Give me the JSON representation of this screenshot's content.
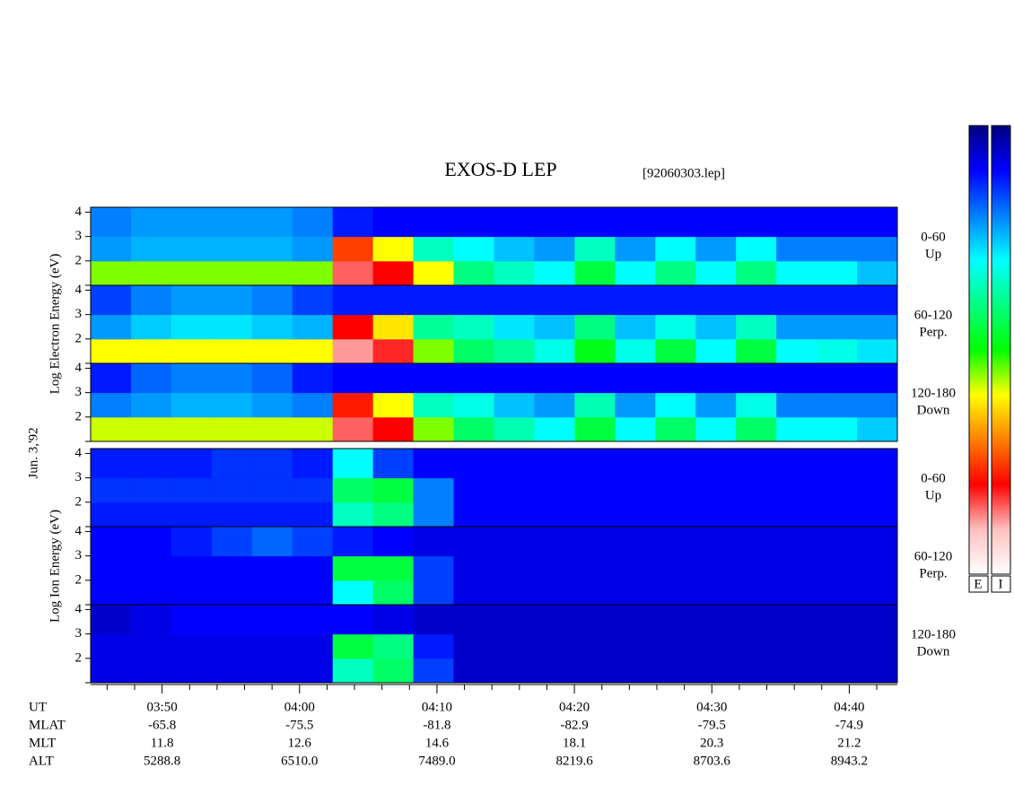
{
  "chart_data": {
    "type": "spectrogram",
    "title": "EXOS-D LEP",
    "file": "[92060303.lep]",
    "date_label": "Jun. 3,'92",
    "group_labels": [
      "Log Electron Energy (eV)",
      "Log Ion Energy (eV)"
    ],
    "colorbar_labels": [
      "E",
      "I"
    ],
    "colorscale": [
      "#000080",
      "#0000ff",
      "#0080ff",
      "#00ffff",
      "#00ff80",
      "#00ff00",
      "#ffff00",
      "#ff8000",
      "#ff0000",
      "#ffc0c0",
      "#ffffff"
    ],
    "xlim": [
      224.8,
      283.5
    ],
    "xticks": [
      {
        "value": 230,
        "label": "03:50"
      },
      {
        "value": 240,
        "label": "04:00"
      },
      {
        "value": 250,
        "label": "04:10"
      },
      {
        "value": 260,
        "label": "04:20"
      },
      {
        "value": 270,
        "label": "04:30"
      },
      {
        "value": 280,
        "label": "04:40"
      }
    ],
    "xminorticks": [
      226,
      228,
      232,
      234,
      236,
      238,
      242,
      244,
      246,
      248,
      252,
      254,
      256,
      258,
      262,
      264,
      266,
      268,
      272,
      274,
      276,
      278,
      282
    ],
    "xlabel": "UT",
    "ephemeris": [
      {
        "name": "MLAT",
        "values": [
          "-65.8",
          "-75.5",
          "-81.8",
          "-82.9",
          "-79.5",
          "-74.9"
        ]
      },
      {
        "name": "MLT",
        "values": [
          "11.8",
          "12.6",
          "14.6",
          "18.1",
          "20.3",
          "21.2"
        ]
      },
      {
        "name": "ALT",
        "values": [
          "5288.8",
          "6510.0",
          "7489.0",
          "8219.6",
          "8703.6",
          "8943.2"
        ]
      }
    ],
    "ylim": [
      1,
      4.2
    ],
    "yticks": [
      1,
      2,
      3,
      4
    ],
    "ybins": [
      1,
      2,
      3,
      4.2
    ],
    "panels": [
      {
        "group": 0,
        "label": [
          "0-60",
          "Up"
        ],
        "values": [
          [
            0.55,
            0.55,
            0.55,
            0.55,
            0.55,
            0.55,
            0.85,
            0.8,
            0.6,
            0.4,
            0.35,
            0.3,
            0.45,
            0.3,
            0.4,
            0.3,
            0.4,
            0.3,
            0.3,
            0.25
          ],
          [
            0.22,
            0.24,
            0.24,
            0.24,
            0.24,
            0.22,
            0.75,
            0.6,
            0.35,
            0.3,
            0.25,
            0.22,
            0.35,
            0.22,
            0.3,
            0.22,
            0.3,
            0.2,
            0.2,
            0.2
          ],
          [
            0.2,
            0.22,
            0.22,
            0.22,
            0.22,
            0.2,
            0.12,
            0.1,
            0.1,
            0.1,
            0.1,
            0.1,
            0.1,
            0.1,
            0.1,
            0.1,
            0.1,
            0.1,
            0.1,
            0.1
          ]
        ]
      },
      {
        "group": 0,
        "label": [
          "60-120",
          "Perp."
        ],
        "values": [
          [
            0.6,
            0.6,
            0.6,
            0.6,
            0.6,
            0.6,
            0.88,
            0.82,
            0.55,
            0.42,
            0.38,
            0.32,
            0.48,
            0.32,
            0.45,
            0.3,
            0.45,
            0.3,
            0.32,
            0.28
          ],
          [
            0.22,
            0.26,
            0.28,
            0.28,
            0.26,
            0.24,
            0.8,
            0.62,
            0.38,
            0.35,
            0.28,
            0.25,
            0.4,
            0.25,
            0.32,
            0.25,
            0.35,
            0.22,
            0.22,
            0.22
          ],
          [
            0.15,
            0.2,
            0.22,
            0.22,
            0.2,
            0.15,
            0.12,
            0.12,
            0.12,
            0.12,
            0.12,
            0.12,
            0.12,
            0.12,
            0.12,
            0.12,
            0.12,
            0.12,
            0.12,
            0.12
          ]
        ]
      },
      {
        "group": 0,
        "label": [
          "120-180",
          "Down"
        ],
        "values": [
          [
            0.58,
            0.58,
            0.58,
            0.58,
            0.58,
            0.58,
            0.85,
            0.8,
            0.55,
            0.42,
            0.36,
            0.3,
            0.45,
            0.3,
            0.42,
            0.3,
            0.42,
            0.3,
            0.3,
            0.26
          ],
          [
            0.2,
            0.22,
            0.24,
            0.24,
            0.22,
            0.2,
            0.78,
            0.6,
            0.35,
            0.32,
            0.25,
            0.22,
            0.36,
            0.22,
            0.3,
            0.22,
            0.32,
            0.2,
            0.2,
            0.2
          ],
          [
            0.12,
            0.18,
            0.2,
            0.2,
            0.18,
            0.12,
            0.1,
            0.1,
            0.1,
            0.1,
            0.1,
            0.1,
            0.1,
            0.1,
            0.1,
            0.1,
            0.1,
            0.1,
            0.1,
            0.1
          ]
        ]
      },
      {
        "group": 1,
        "label": [
          "0-60",
          "Up"
        ],
        "values": [
          [
            0.12,
            0.12,
            0.12,
            0.12,
            0.12,
            0.12,
            0.35,
            0.4,
            0.2,
            0.1,
            0.1,
            0.1,
            0.1,
            0.1,
            0.1,
            0.1,
            0.1,
            0.1,
            0.1,
            0.1
          ],
          [
            0.14,
            0.14,
            0.14,
            0.14,
            0.14,
            0.14,
            0.42,
            0.45,
            0.2,
            0.1,
            0.1,
            0.1,
            0.1,
            0.1,
            0.1,
            0.1,
            0.1,
            0.1,
            0.1,
            0.1
          ],
          [
            0.12,
            0.12,
            0.12,
            0.14,
            0.14,
            0.12,
            0.3,
            0.15,
            0.1,
            0.1,
            0.1,
            0.1,
            0.1,
            0.1,
            0.1,
            0.1,
            0.1,
            0.1,
            0.1,
            0.1
          ]
        ]
      },
      {
        "group": 1,
        "label": [
          "60-120",
          "Perp."
        ],
        "values": [
          [
            0.1,
            0.1,
            0.1,
            0.1,
            0.1,
            0.1,
            0.3,
            0.42,
            0.15,
            0.08,
            0.08,
            0.08,
            0.08,
            0.08,
            0.08,
            0.08,
            0.08,
            0.08,
            0.08,
            0.08
          ],
          [
            0.1,
            0.1,
            0.1,
            0.1,
            0.1,
            0.1,
            0.45,
            0.45,
            0.15,
            0.08,
            0.08,
            0.08,
            0.08,
            0.08,
            0.08,
            0.08,
            0.08,
            0.08,
            0.08,
            0.08
          ],
          [
            0.1,
            0.1,
            0.12,
            0.15,
            0.18,
            0.15,
            0.12,
            0.1,
            0.08,
            0.08,
            0.08,
            0.08,
            0.08,
            0.08,
            0.08,
            0.08,
            0.08,
            0.08,
            0.08,
            0.08
          ]
        ]
      },
      {
        "group": 1,
        "label": [
          "120-180",
          "Down"
        ],
        "values": [
          [
            0.08,
            0.08,
            0.08,
            0.08,
            0.08,
            0.08,
            0.35,
            0.42,
            0.15,
            0.06,
            0.06,
            0.06,
            0.06,
            0.06,
            0.06,
            0.06,
            0.06,
            0.06,
            0.06,
            0.06
          ],
          [
            0.08,
            0.08,
            0.08,
            0.08,
            0.08,
            0.08,
            0.45,
            0.4,
            0.12,
            0.06,
            0.06,
            0.06,
            0.06,
            0.06,
            0.06,
            0.06,
            0.06,
            0.06,
            0.06,
            0.06
          ],
          [
            0.06,
            0.08,
            0.1,
            0.1,
            0.1,
            0.1,
            0.1,
            0.08,
            0.06,
            0.06,
            0.06,
            0.06,
            0.06,
            0.06,
            0.06,
            0.06,
            0.06,
            0.06,
            0.06,
            0.06
          ]
        ]
      }
    ]
  }
}
